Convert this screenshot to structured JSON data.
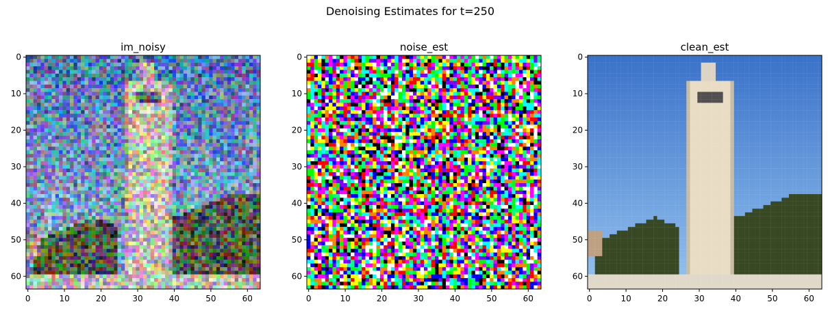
{
  "figure": {
    "title": "Denoising Estimates for t=250"
  },
  "panels": [
    {
      "title": "im_noisy",
      "kind": "noisy"
    },
    {
      "title": "noise_est",
      "kind": "noise"
    },
    {
      "title": "clean_est",
      "kind": "clean"
    }
  ],
  "axes": {
    "y_ticks": [
      "0",
      "10",
      "20",
      "30",
      "40",
      "50",
      "60"
    ],
    "x_ticks": [
      "0",
      "10",
      "20",
      "30",
      "40",
      "50",
      "60"
    ],
    "y_values": [
      0,
      10,
      20,
      30,
      40,
      50,
      60
    ],
    "x_values": [
      0,
      10,
      20,
      30,
      40,
      50,
      60
    ],
    "range": [
      -0.5,
      63.5
    ]
  },
  "colors": {
    "sky_top": "#3a72c8",
    "sky_bottom": "#8fbaf0",
    "tower": "#e8dcc4",
    "trees": "#3a4a22",
    "ground": "#e0d8c8"
  }
}
